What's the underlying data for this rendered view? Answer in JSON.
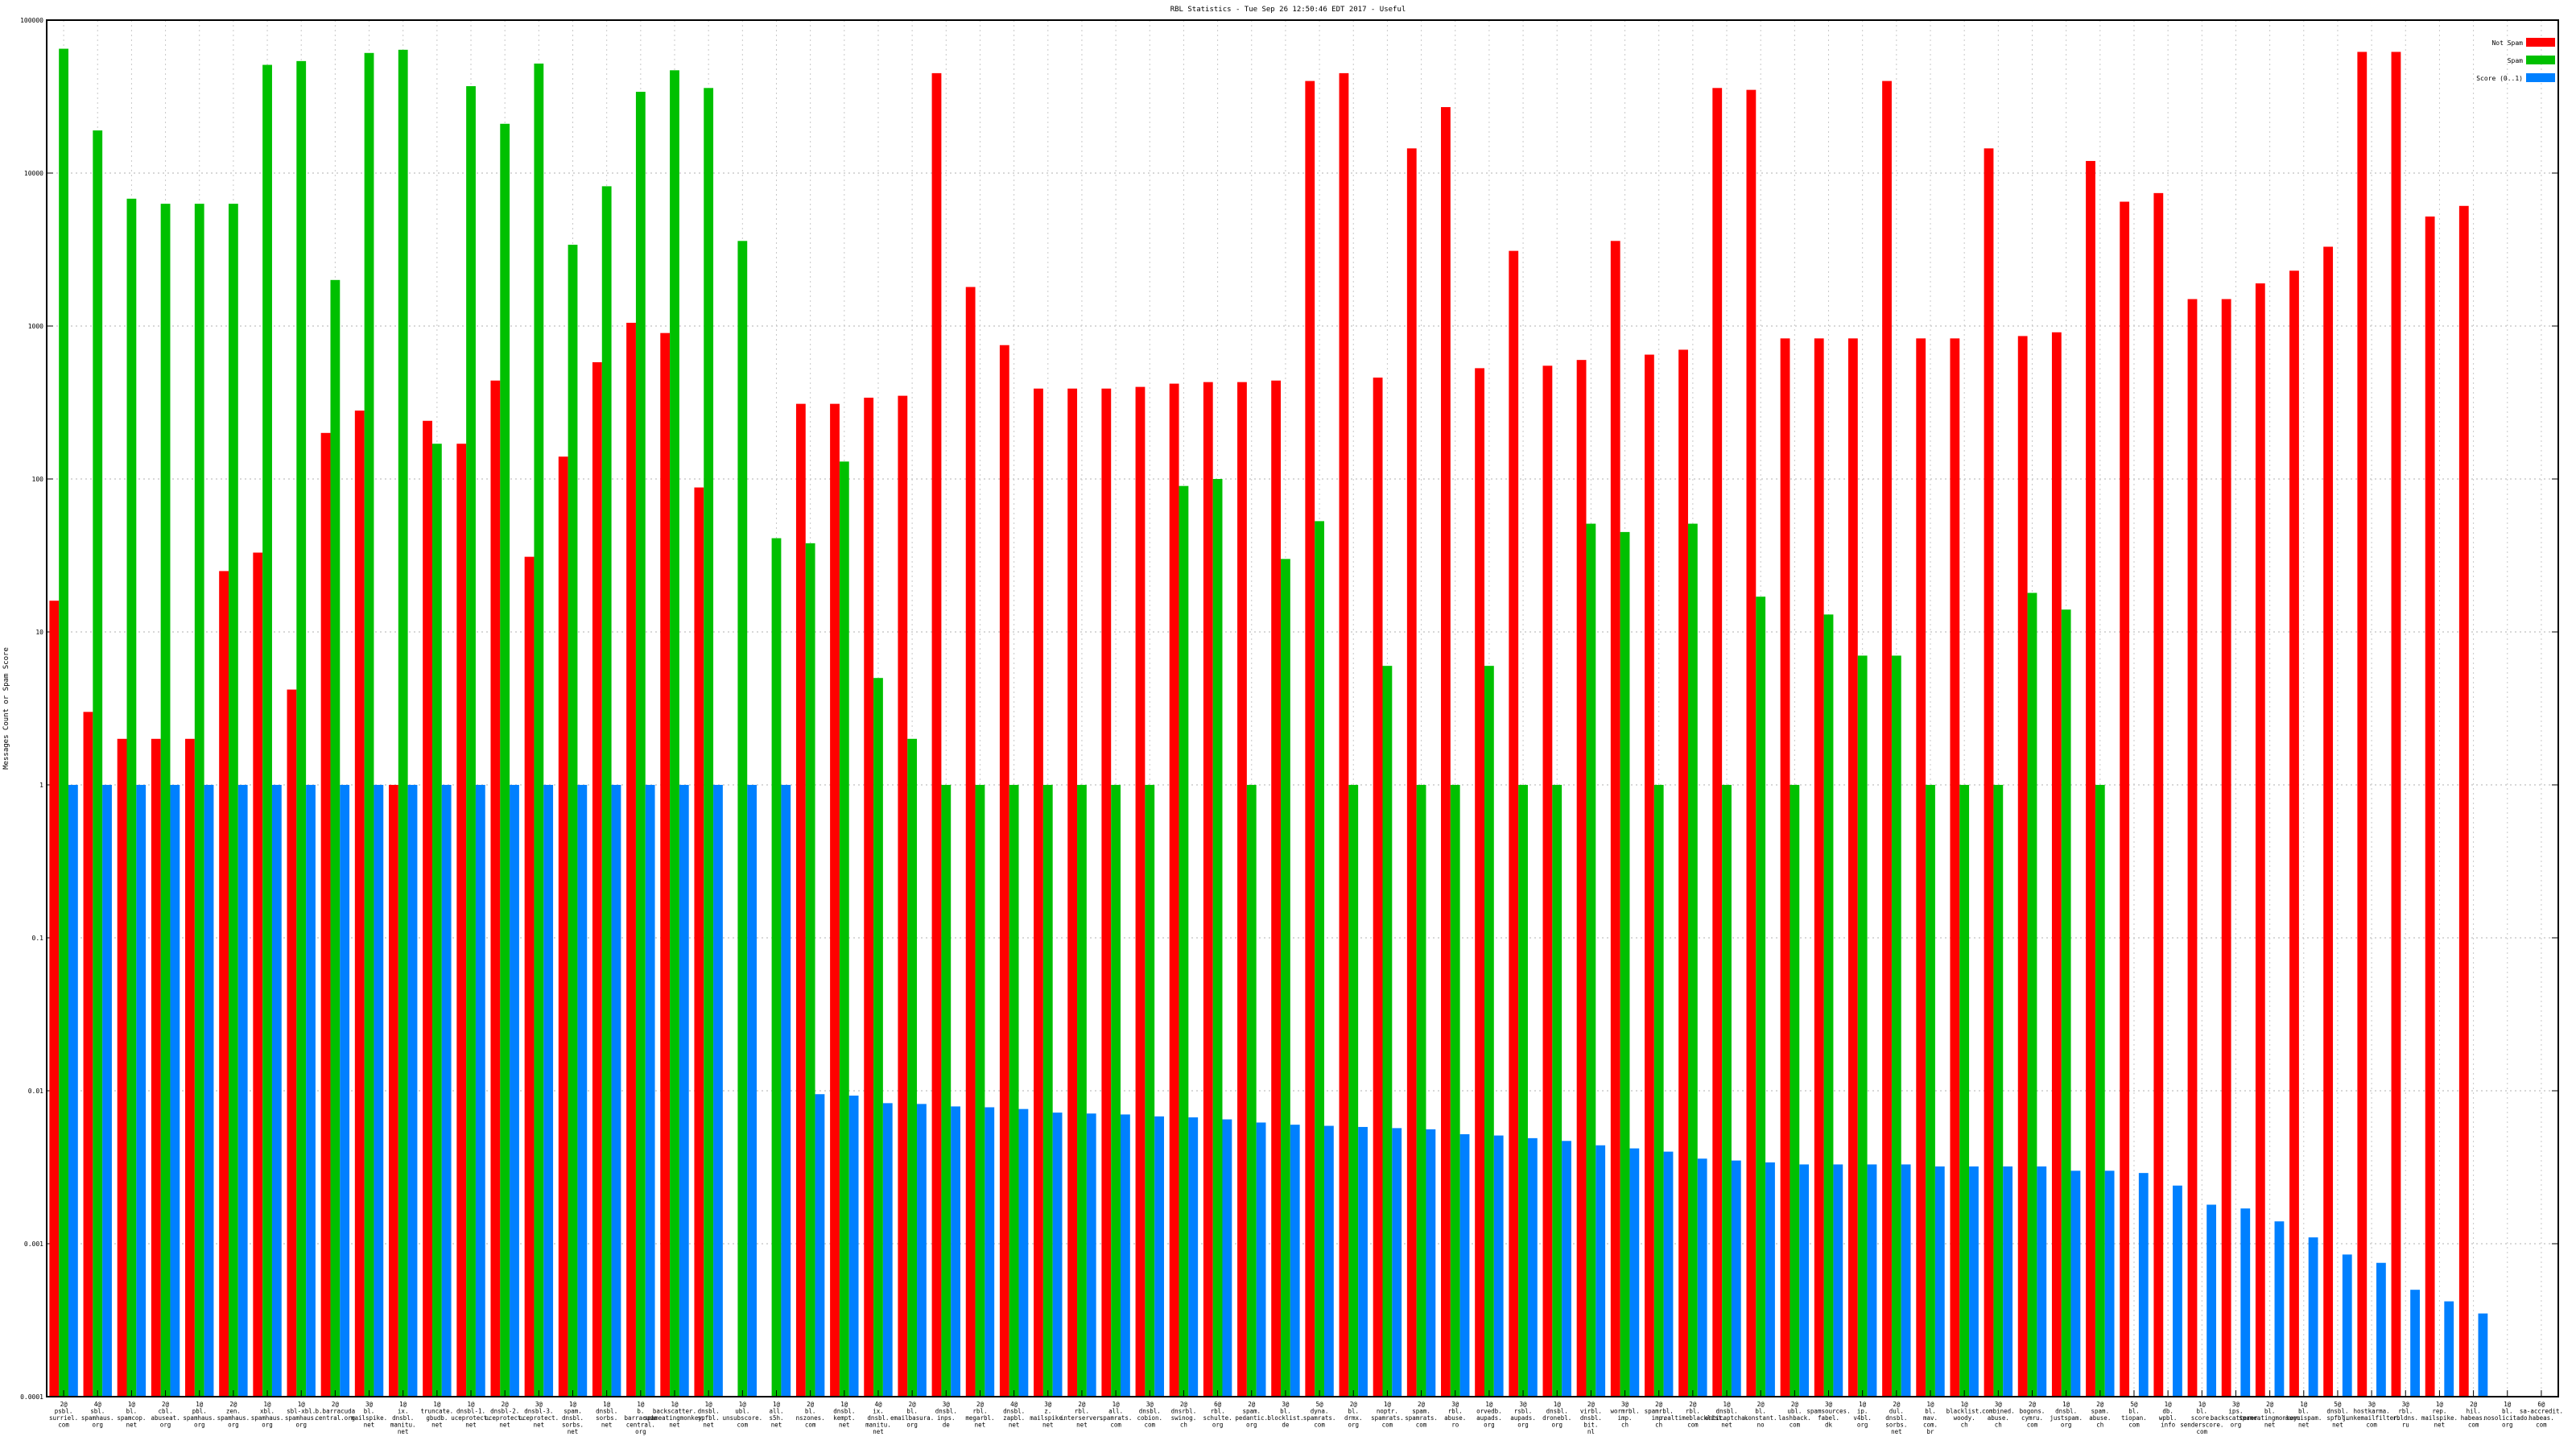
{
  "chart_data": {
    "type": "bar",
    "title": "RBL Statistics - Tue Sep 26 12:50:46 EDT 2017 - Useful",
    "ylabel": "Messages Count or Spam Score",
    "xlabel": "",
    "yscale": "log",
    "ylim": [
      0.0001,
      100000
    ],
    "yticks": [
      "0.0001",
      "0.001",
      "0.01",
      "0.1",
      "1",
      "10",
      "100",
      "1000",
      "10000",
      "100000"
    ],
    "grid": true,
    "legend_position": "top-right",
    "categories": [
      "2@ psbl. surriel. com",
      "4@ sbl. spamhaus. org",
      "1@ bl. spamcop. net",
      "2@ cbl. abuseat. org",
      "1@ pbl. spamhaus. org",
      "2@ zen. spamhaus. org",
      "1@ xbl. spamhaus. org",
      "1@ sbl-xbl. spamhaus. org",
      "2@ b.barracuda central.org",
      "3@ bl. mailspike. net",
      "1@ ix. dnsbl. manitu. net",
      "1@ truncate. gbudb. net",
      "1@ dnsbl-1. uceprotect. net",
      "2@ dnsbl-2. uceprotect. net",
      "3@ dnsbl-3. uceprotect. net",
      "1@ spam. dnsbl. sorbs. net",
      "1@ dnsbl. sorbs. net",
      "1@ b. barracuda central. org",
      "1@ backscatter. spameatingmonkey. net",
      "1@ dnsbl. spfbl. net",
      "1@ ubl. unsubscore. com",
      "1@ all. s5h. net",
      "2@ bl. nszones. com",
      "1@ dnsbl. kempt. net",
      "4@ ix. dnsbl. manitu. net",
      "2@ bl. emailbasura. org",
      "3@ dnsbl. inps. de",
      "2@ rbl. megarbl. net",
      "4@ dnsbl. zapbl. net",
      "3@ z. mailspike. net",
      "2@ rbl. interserver. net",
      "1@ all. spamrats. com",
      "3@ dnsbl. cobion. com",
      "2@ dnsrbl. swinog. ch",
      "6@ rbl. schulte. org",
      "2@ spam. pedantic. org",
      "3@ bl. blocklist. de",
      "5@ dyna. spamrats. com",
      "2@ bl. drmx. org",
      "1@ noptr. spamrats. com",
      "2@ spam. spamrats. com",
      "3@ rbl. abuse. ro",
      "1@ orvedb. aupads. org",
      "3@ rsbl. aupads. org",
      "1@ dnsbl. dronebl. org",
      "2@ virbl. dnsbl. bit. nl",
      "3@ wormrbl. imp. ch",
      "2@ spamrbl. imp. ch",
      "2@ rbl. realtimeblacklist. com",
      "1@ dnsbl. anticaptcha. net",
      "2@ bl. konstant. no",
      "2@ ubl. lashback. com",
      "3@ spamsources. fabel. dk",
      "1@ ip. v4bl. org",
      "2@ dul. dnsbl. sorbs. net",
      "1@ bl. mav. com. br",
      "1@ blacklist. woody. ch",
      "3@ combined. abuse. ch",
      "2@ bogons. cymru. com",
      "1@ dnsbl. justspam. org",
      "2@ spam. abuse. ch",
      "5@ bl. tiopan. com",
      "1@ db. wpbl. info",
      "1@ bl. score. senderscore. com",
      "3@ ips. backscatterer. org",
      "2@ bl. spameatingmonkey. net",
      "1@ bl. suomispam. net",
      "5@ dnsbl. spfbl. net",
      "3@ hostkarma. junkemailfilter. com",
      "3@ rbl. rbldns. ru",
      "1@ rep. mailspike. net",
      "2@ hil. habeas. com",
      "1@ bl. nosolicitado. org",
      "6@ sa-accredit. habeas. com"
    ],
    "series": [
      {
        "name": "Not Spam",
        "color": "#ff0000",
        "values": [
          16,
          3,
          2,
          2,
          2,
          25,
          33,
          4.2,
          200,
          280,
          1,
          240,
          170,
          440,
          31,
          140,
          580,
          1050,
          900,
          88,
          null,
          null,
          310,
          310,
          340,
          350,
          45000,
          1800,
          750,
          390,
          390,
          390,
          400,
          420,
          430,
          430,
          440,
          40000,
          45000,
          460,
          14500,
          27000,
          530,
          3100,
          550,
          600,
          3600,
          650,
          700,
          36000,
          35000,
          830,
          830,
          830,
          40000,
          830,
          830,
          14500,
          860,
          910,
          12000,
          6500,
          7400,
          1500,
          1500,
          1900,
          2300,
          3300,
          62000,
          62000,
          5200,
          6100,
          null,
          null
        ]
      },
      {
        "name": "Spam",
        "color": "#00c000",
        "values": [
          65000,
          19000,
          6800,
          6300,
          6300,
          6300,
          51000,
          54000,
          2000,
          61000,
          64000,
          170,
          37000,
          21000,
          52000,
          3400,
          8200,
          34000,
          47000,
          36000,
          3600,
          41,
          38,
          130,
          5,
          2,
          1,
          1,
          1,
          1,
          1,
          1,
          1,
          90,
          100,
          1,
          30,
          53,
          1,
          6,
          1,
          1,
          6,
          1,
          1,
          51,
          45,
          1,
          51,
          1,
          17,
          1,
          13,
          7,
          7,
          1,
          1,
          1,
          18,
          14,
          1,
          null,
          null,
          null,
          null,
          null,
          null,
          null,
          null,
          null,
          null,
          null,
          null,
          null
        ]
      },
      {
        "name": "Score (0..1)",
        "color": "#0080ff",
        "values": [
          1,
          1,
          1,
          1,
          1,
          1,
          1,
          1,
          1,
          1,
          1,
          1,
          1,
          1,
          1,
          1,
          1,
          1,
          1,
          1,
          1,
          1,
          0.0095,
          0.0093,
          0.0083,
          0.0082,
          0.0079,
          0.0078,
          0.0076,
          0.0072,
          0.0071,
          0.007,
          0.0068,
          0.0067,
          0.0065,
          0.0062,
          0.006,
          0.0059,
          0.0058,
          0.0057,
          0.0056,
          0.0052,
          0.0051,
          0.0049,
          0.0047,
          0.0044,
          0.0042,
          0.004,
          0.0036,
          0.0035,
          0.0034,
          0.0033,
          0.0033,
          0.0033,
          0.0033,
          0.0032,
          0.0032,
          0.0032,
          0.0032,
          0.003,
          0.003,
          0.0029,
          0.0024,
          0.0018,
          0.0017,
          0.0014,
          0.0011,
          0.00085,
          0.00075,
          0.0005,
          0.00042,
          0.00035,
          null,
          null
        ]
      }
    ]
  }
}
